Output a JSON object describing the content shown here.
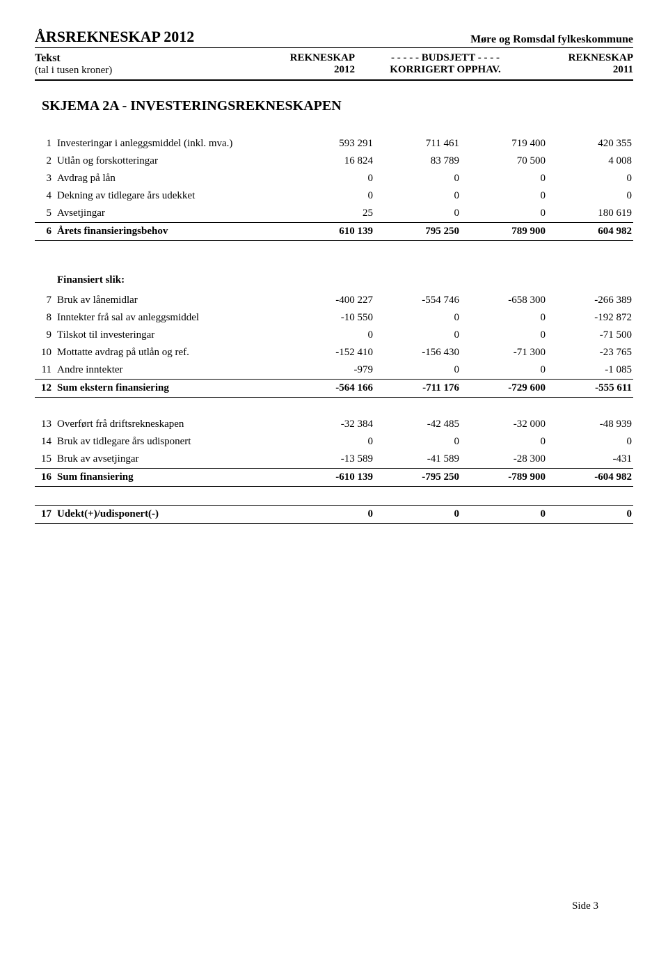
{
  "header": {
    "title": "ÅRSREKNESKAP 2012",
    "org": "Møre og Romsdal fylkeskommune",
    "left1": "Tekst",
    "left2": "(tal i tusen kroner)",
    "col1a": "REKNESKAP",
    "col1b": "2012",
    "col2a": "- - - - - BUDSJETT - - - -",
    "col2b": "KORRIGERT  OPPHAV.",
    "col3a": "REKNESKAP",
    "col3b": "2011"
  },
  "section": "SKJEMA 2A - INVESTERINGSREKNESKAPEN",
  "rows1": [
    {
      "n": "1",
      "label": "Investeringar i anleggsmiddel (inkl. mva.)",
      "v": [
        "593 291",
        "711 461",
        "719 400",
        "420 355"
      ]
    },
    {
      "n": "2",
      "label": "Utlån og forskotteringar",
      "v": [
        "16 824",
        "83 789",
        "70 500",
        "4 008"
      ]
    },
    {
      "n": "3",
      "label": "Avdrag på lån",
      "v": [
        "0",
        "0",
        "0",
        "0"
      ]
    },
    {
      "n": "4",
      "label": "Dekning av tidlegare års udekket",
      "v": [
        "0",
        "0",
        "0",
        "0"
      ]
    },
    {
      "n": "5",
      "label": "Avsetjingar",
      "v": [
        "25",
        "0",
        "0",
        "180 619"
      ]
    }
  ],
  "sum1": {
    "n": "6",
    "label": "Årets finansieringsbehov",
    "v": [
      "610 139",
      "795 250",
      "789 900",
      "604 982"
    ]
  },
  "sub1": "Finansiert slik:",
  "rows2": [
    {
      "n": "7",
      "label": "Bruk av lånemidlar",
      "v": [
        "-400 227",
        "-554 746",
        "-658 300",
        "-266 389"
      ]
    },
    {
      "n": "8",
      "label": "Inntekter frå sal av anleggsmiddel",
      "v": [
        "-10 550",
        "0",
        "0",
        "-192 872"
      ]
    },
    {
      "n": "9",
      "label": "Tilskot til investeringar",
      "v": [
        "0",
        "0",
        "0",
        "-71 500"
      ]
    },
    {
      "n": "10",
      "label": "Mottatte avdrag på utlån og ref.",
      "v": [
        "-152 410",
        "-156 430",
        "-71 300",
        "-23 765"
      ]
    },
    {
      "n": "11",
      "label": "Andre inntekter",
      "v": [
        "-979",
        "0",
        "0",
        "-1 085"
      ]
    }
  ],
  "sum2": {
    "n": "12",
    "label": "Sum ekstern finansiering",
    "v": [
      "-564 166",
      "-711 176",
      "-729 600",
      "-555 611"
    ]
  },
  "rows3": [
    {
      "n": "13",
      "label": "Overført frå driftsrekneskapen",
      "v": [
        "-32 384",
        "-42 485",
        "-32 000",
        "-48 939"
      ]
    },
    {
      "n": "14",
      "label": "Bruk av tidlegare års udisponert",
      "v": [
        "0",
        "0",
        "0",
        "0"
      ]
    },
    {
      "n": "15",
      "label": "Bruk av avsetjingar",
      "v": [
        "-13 589",
        "-41 589",
        "-28 300",
        "-431"
      ]
    }
  ],
  "sum3": {
    "n": "16",
    "label": "Sum finansiering",
    "v": [
      "-610 139",
      "-795 250",
      "-789 900",
      "-604 982"
    ]
  },
  "sum4": {
    "n": "17",
    "label": "Udekt(+)/udisponert(-)",
    "v": [
      "0",
      "0",
      "0",
      "0"
    ]
  },
  "page": "Side 3"
}
